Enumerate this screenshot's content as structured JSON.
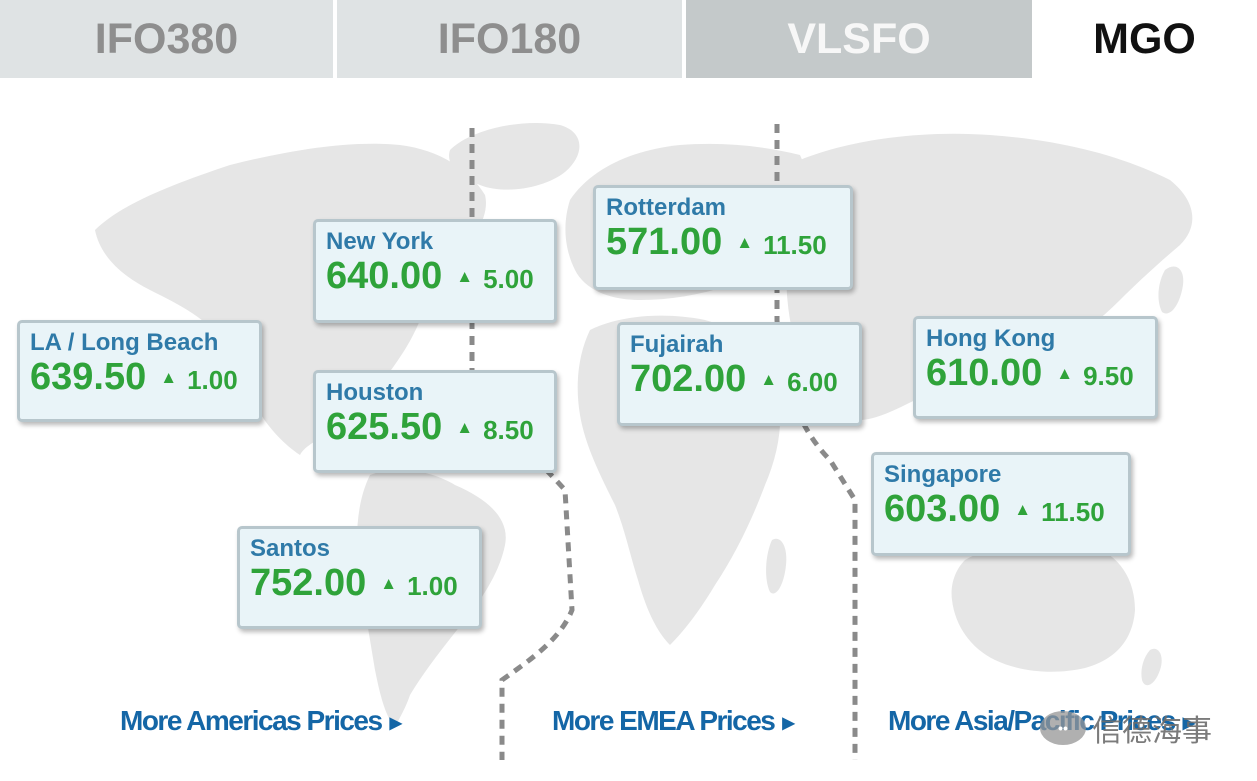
{
  "tabs": [
    {
      "label": "IFO380",
      "state": "inactive"
    },
    {
      "label": "IFO180",
      "state": "inactive"
    },
    {
      "label": "VLSFO",
      "state": "inactive"
    },
    {
      "label": "MGO",
      "state": "active"
    }
  ],
  "ports": [
    {
      "name": "LA / Long Beach",
      "price": "639.50",
      "change": "1.00",
      "direction": "up"
    },
    {
      "name": "New York",
      "price": "640.00",
      "change": "5.00",
      "direction": "up"
    },
    {
      "name": "Houston",
      "price": "625.50",
      "change": "8.50",
      "direction": "up"
    },
    {
      "name": "Santos",
      "price": "752.00",
      "change": "1.00",
      "direction": "up"
    },
    {
      "name": "Rotterdam",
      "price": "571.00",
      "change": "11.50",
      "direction": "up"
    },
    {
      "name": "Fujairah",
      "price": "702.00",
      "change": "6.00",
      "direction": "up"
    },
    {
      "name": "Hong Kong",
      "price": "610.00",
      "change": "9.50",
      "direction": "up"
    },
    {
      "name": "Singapore",
      "price": "603.00",
      "change": "11.50",
      "direction": "up"
    }
  ],
  "links": {
    "americas": "More Americas Prices",
    "emea": "More EMEA Prices",
    "asia": "More Asia/Pacific Prices"
  },
  "watermark": {
    "text": "信德海事"
  },
  "colors": {
    "up": "#2fa33a",
    "port_name": "#2f7aa8",
    "link": "#1466a6",
    "card_bg": "#e9f4f8",
    "map_land": "#e6e6e6"
  },
  "icons": {
    "change_indicator": "triangle-up-icon",
    "link_caret": "caret-right-icon"
  }
}
